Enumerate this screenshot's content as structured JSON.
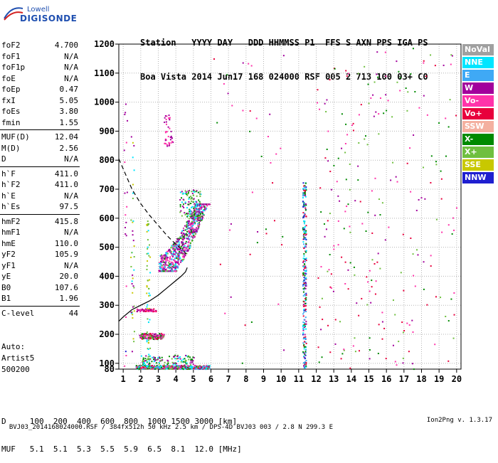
{
  "logo": {
    "line1": "Lowell",
    "line2": "DIGISONDE"
  },
  "header": {
    "line1": "Station   YYYY DAY   DDD HHMMSS P1  FFS S AXN PPS IGA PS",
    "line2": "Boa Vista 2014 Jun17 168 024000 RSF 005 2 713 100 03+ C0"
  },
  "params": {
    "group1": [
      {
        "name": "foF2",
        "value": "4.700"
      },
      {
        "name": "foF1",
        "value": "N/A"
      },
      {
        "name": "foF1p",
        "value": "N/A"
      },
      {
        "name": "foE",
        "value": "N/A"
      },
      {
        "name": "foEp",
        "value": "0.47"
      },
      {
        "name": "fxI",
        "value": "5.05"
      },
      {
        "name": "foEs",
        "value": "3.80"
      },
      {
        "name": "fmin",
        "value": "1.55"
      }
    ],
    "group2": [
      {
        "name": "MUF(D)",
        "value": "12.04"
      },
      {
        "name": "M(D)",
        "value": "2.56"
      },
      {
        "name": "D",
        "value": "N/A"
      }
    ],
    "group3": [
      {
        "name": "h`F",
        "value": "411.0"
      },
      {
        "name": "h`F2",
        "value": "411.0"
      },
      {
        "name": "h`E",
        "value": "N/A"
      },
      {
        "name": "h`Es",
        "value": "97.5"
      }
    ],
    "group4": [
      {
        "name": "hmF2",
        "value": "415.8"
      },
      {
        "name": "hmF1",
        "value": "N/A"
      },
      {
        "name": "hmE",
        "value": "110.0"
      },
      {
        "name": "yF2",
        "value": "105.9"
      },
      {
        "name": "yF1",
        "value": "N/A"
      },
      {
        "name": "yE",
        "value": "20.0"
      },
      {
        "name": "B0",
        "value": "107.6"
      },
      {
        "name": "B1",
        "value": "1.96"
      }
    ],
    "group5": [
      {
        "name": "C-level",
        "value": "44"
      }
    ]
  },
  "auto": {
    "line1": "Auto:",
    "line2": "Artist5",
    "line3": "500200"
  },
  "legend": [
    {
      "label": "NoVal",
      "color": "#a0a0a0"
    },
    {
      "label": "NNE",
      "color": "#00e5ff"
    },
    {
      "label": "E",
      "color": "#3fa9f5"
    },
    {
      "label": "W",
      "color": "#a2009c"
    },
    {
      "label": "Vo-",
      "color": "#ff33aa"
    },
    {
      "label": "Vo+",
      "color": "#e8003c"
    },
    {
      "label": "SSW",
      "color": "#f4b0a0"
    },
    {
      "label": "X-",
      "color": "#008a00"
    },
    {
      "label": "X+",
      "color": "#6fbf3f"
    },
    {
      "label": "SSE",
      "color": "#c8c800"
    },
    {
      "label": "NNW",
      "color": "#1f1fd0"
    }
  ],
  "muf_table": {
    "line1": "D     100  200  400  600  800  1000 1500 3000 [km]",
    "line2": "MUF   5.1  5.1  5.3  5.5  5.9  6.5  8.1  12.0 [MHz]"
  },
  "footer": {
    "left": "BVJ03_2014168024000.RSF / 384fx512h 50 kHz 2.5 km / DPS-4D BVJ03 003 / 2.8 N 299.3 E",
    "right": "Ion2Png v. 1.3.17"
  },
  "chart_data": {
    "type": "scatter",
    "xlim": [
      0.75,
      20.25
    ],
    "ylim": [
      80,
      1200
    ],
    "x_ticks": [
      1,
      2,
      3,
      4,
      5,
      6,
      7,
      8,
      9,
      10,
      11,
      12,
      13,
      14,
      15,
      16,
      17,
      18,
      19,
      20
    ],
    "y_ticks": [
      80,
      100,
      200,
      300,
      400,
      500,
      600,
      700,
      800,
      900,
      1000,
      1100,
      1200
    ],
    "grid": true,
    "profile_solid": [
      {
        "x": 0.75,
        "y": 245
      },
      {
        "x": 1.0,
        "y": 260
      },
      {
        "x": 1.5,
        "y": 285
      },
      {
        "x": 2.0,
        "y": 300
      },
      {
        "x": 2.5,
        "y": 315
      },
      {
        "x": 3.0,
        "y": 335
      },
      {
        "x": 3.5,
        "y": 360
      },
      {
        "x": 4.0,
        "y": 385
      },
      {
        "x": 4.3,
        "y": 400
      },
      {
        "x": 4.55,
        "y": 415
      },
      {
        "x": 4.65,
        "y": 430
      }
    ],
    "profile_dashed": [
      {
        "x": 0.75,
        "y": 805
      },
      {
        "x": 1.0,
        "y": 770
      },
      {
        "x": 1.5,
        "y": 700
      },
      {
        "x": 2.0,
        "y": 650
      },
      {
        "x": 2.5,
        "y": 610
      },
      {
        "x": 3.0,
        "y": 575
      },
      {
        "x": 3.5,
        "y": 540
      },
      {
        "x": 4.0,
        "y": 510
      },
      {
        "x": 4.4,
        "y": 490
      },
      {
        "x": 4.7,
        "y": 470
      }
    ],
    "clusters": [
      {
        "xmin": 3.0,
        "xmax": 5.9,
        "ymin": 420,
        "ymax": 650,
        "n": 900,
        "palette": [
          3,
          3,
          3,
          4,
          4,
          7,
          8,
          1,
          2
        ]
      },
      {
        "xmin": 4.2,
        "xmax": 5.4,
        "ymin": 600,
        "ymax": 700,
        "n": 120,
        "palette": [
          3,
          7,
          8,
          1
        ]
      },
      {
        "xmin": 3.3,
        "xmax": 3.8,
        "ymin": 840,
        "ymax": 960,
        "n": 40,
        "palette": [
          3,
          4
        ]
      },
      {
        "xmin": 1.9,
        "xmax": 3.3,
        "ymin": 185,
        "ymax": 205,
        "n": 160,
        "palette": [
          5,
          7,
          8,
          3,
          4
        ]
      },
      {
        "xmin": 1.7,
        "xmax": 2.9,
        "ymin": 280,
        "ymax": 290,
        "n": 60,
        "palette": [
          3,
          4,
          5
        ]
      },
      {
        "xmin": 1.7,
        "xmax": 5.9,
        "ymin": 82,
        "ymax": 95,
        "n": 420,
        "palette": [
          5,
          3,
          4,
          7,
          8,
          1,
          2
        ]
      },
      {
        "xmin": 2.0,
        "xmax": 5.0,
        "ymin": 95,
        "ymax": 130,
        "n": 120,
        "palette": [
          7,
          8,
          1,
          3
        ]
      },
      {
        "xmin": 2.3,
        "xmax": 2.5,
        "ymin": 130,
        "ymax": 600,
        "n": 50,
        "palette": [
          8,
          9,
          1
        ]
      },
      {
        "xmin": 1.4,
        "xmax": 1.6,
        "ymin": 130,
        "ymax": 900,
        "n": 40,
        "palette": [
          8,
          9,
          1,
          3
        ]
      },
      {
        "xmin": 11.2,
        "xmax": 11.4,
        "ymin": 82,
        "ymax": 730,
        "n": 260,
        "palette": [
          1,
          2,
          3,
          10,
          7,
          5
        ]
      },
      {
        "xmin": 12.0,
        "xmax": 20.0,
        "ymin": 82,
        "ymax": 1200,
        "n": 260,
        "palette": [
          3,
          4,
          5,
          7,
          8
        ]
      },
      {
        "xmin": 6.0,
        "xmax": 11.0,
        "ymin": 82,
        "ymax": 1200,
        "n": 40,
        "palette": [
          3,
          4,
          5,
          7
        ]
      },
      {
        "xmin": 1.0,
        "xmax": 1.2,
        "ymin": 82,
        "ymax": 1000,
        "n": 20,
        "palette": [
          10,
          3,
          4
        ]
      }
    ]
  }
}
